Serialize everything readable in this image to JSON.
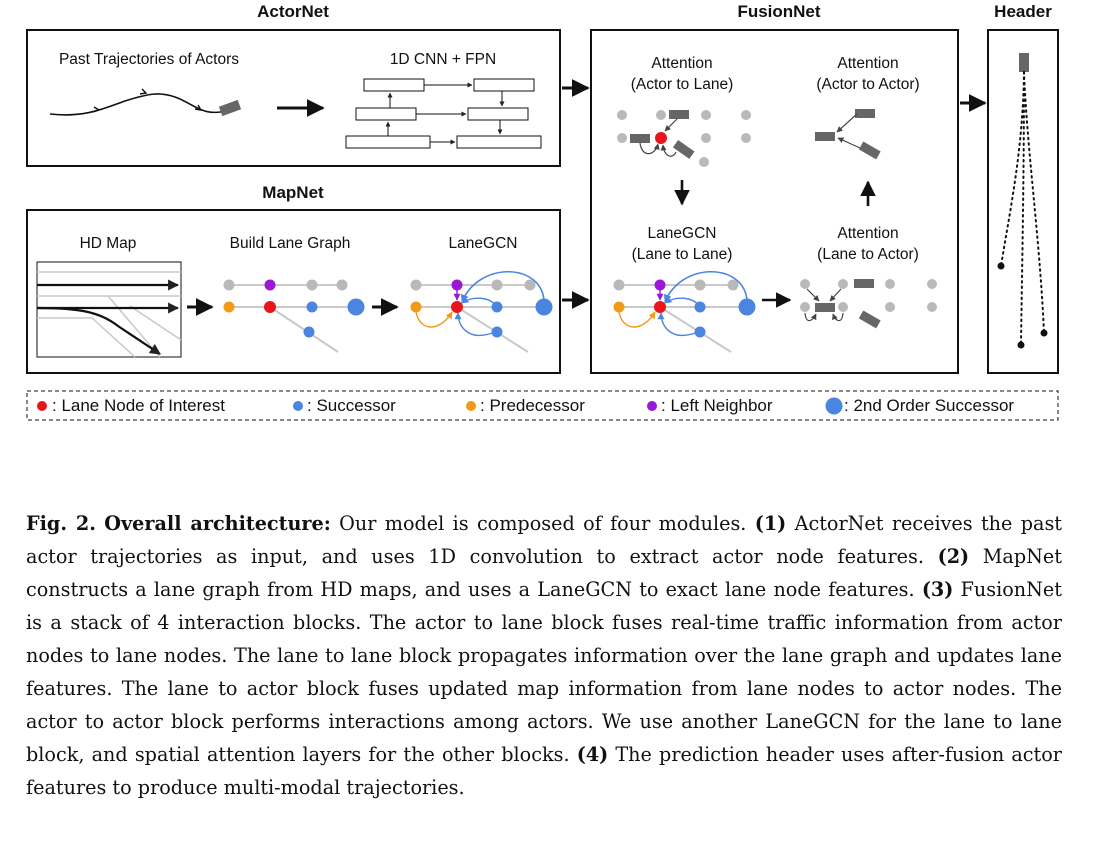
{
  "figure": {
    "modules": {
      "actornet": {
        "title": "ActorNet",
        "input_label": "Past Trajectories of Actors",
        "network_label": "1D CNN + FPN"
      },
      "mapnet": {
        "title": "MapNet",
        "hd_map_label": "HD Map",
        "lane_graph_label": "Build Lane Graph",
        "lanegcn_label": "LaneGCN"
      },
      "fusionnet": {
        "title": "FusionNet",
        "a2l_line1": "Attention",
        "a2l_line2": "(Actor to Lane)",
        "a2a_line1": "Attention",
        "a2a_line2": "(Actor to Actor)",
        "l2l_line1": "LaneGCN",
        "l2l_line2": "(Lane to Lane)",
        "l2a_line1": "Attention",
        "l2a_line2": "(Lane to Actor)"
      },
      "header": {
        "title": "Header"
      }
    },
    "legend": [
      {
        "text": ": Lane Node of Interest",
        "color": "#e8161b"
      },
      {
        "text": ": Successor",
        "color": "#4a86e0"
      },
      {
        "text": ": Predecessor",
        "color": "#f29a18"
      },
      {
        "text": ": Left Neighbor",
        "color": "#9b18d6"
      },
      {
        "text": ": 2nd Order Successor",
        "color": "#4a86e0"
      }
    ],
    "colors": {
      "gray_node": "#b9b9b9",
      "actor_box": "#666666"
    }
  },
  "caption": {
    "label": "Fig. 2.",
    "heading": "Overall architecture:",
    "s0": " Our model is composed of four modules. ",
    "m1": "(1)",
    "s1": " ActorNet receives the past actor trajectories as input, and uses 1D convolution to extract actor node features. ",
    "m2": "(2)",
    "s2": " MapNet constructs a lane graph from HD maps, and uses a LaneGCN to exact lane node features. ",
    "m3": "(3)",
    "s3": " FusionNet is a stack of 4 interaction blocks. The actor to lane block fuses real-time traffic information from actor nodes to lane nodes. The lane to lane block propagates information over the lane graph and updates lane features. The lane to actor block fuses updated map information from lane nodes to actor nodes. The actor to actor block performs interactions among actors. We use another LaneGCN for the lane to lane block, and spatial attention layers for the other blocks. ",
    "m4": "(4)",
    "s4": " The prediction header uses after-fusion actor features to produce multi-modal trajectories."
  }
}
